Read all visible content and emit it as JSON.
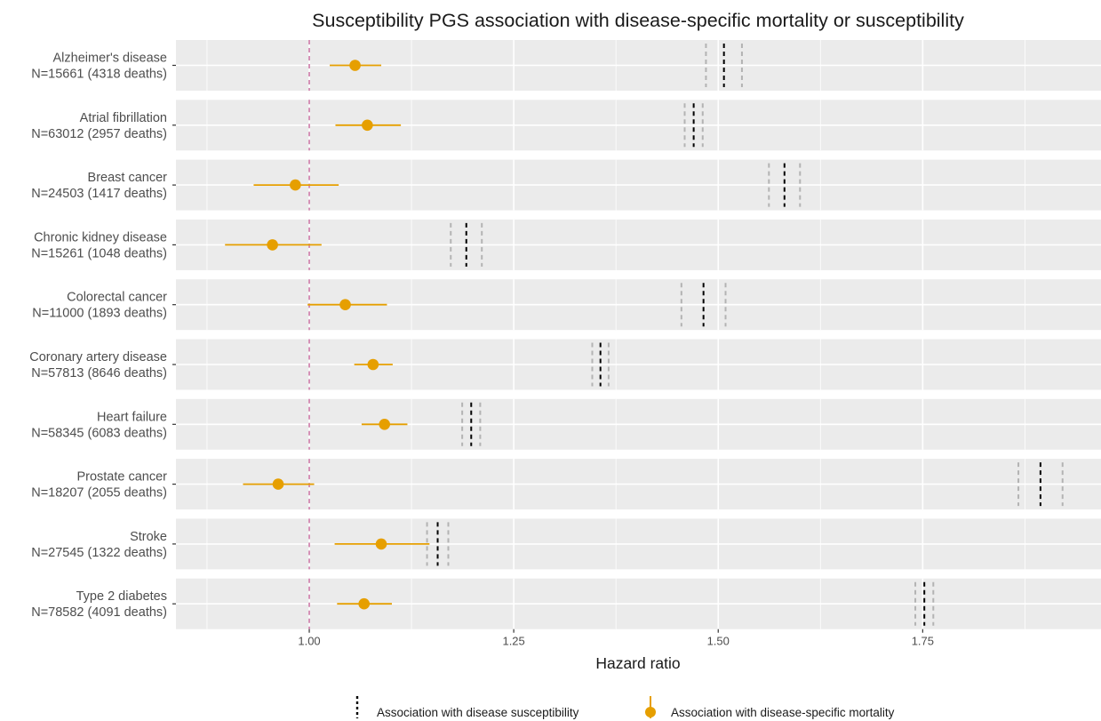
{
  "chart_data": {
    "type": "forest",
    "title": "Susceptibility PGS association with disease-specific mortality or susceptibility",
    "xlabel": "Hazard ratio",
    "ylabel": "",
    "xlim": [
      0.837,
      1.968
    ],
    "xticks": [
      "1.00",
      "1.25",
      "1.50",
      "1.75"
    ],
    "xtick_values": [
      1.0,
      1.25,
      1.5,
      1.75
    ],
    "reference_line": 1.0,
    "grid": true,
    "legend_position": "bottom",
    "legend": [
      {
        "label": "Association with disease susceptibility",
        "marker": "dashed-line",
        "color": "#000000"
      },
      {
        "label": "Association with disease-specific mortality",
        "marker": "point-range",
        "color": "#E69F00"
      }
    ],
    "colors": {
      "mortality": "#E69F00",
      "susceptibility": "#000000",
      "susceptibility_ci": "#b3b3b3",
      "reference": "#CC79A7",
      "panel": "#ebebeb",
      "grid": "#ffffff"
    },
    "rows": [
      {
        "label": "Alzheimer's disease",
        "n_label": "N=15661 (4318 deaths)",
        "mortality_hr": 1.056,
        "mortality_lo": 1.025,
        "mortality_hi": 1.088,
        "suscept_hr": 1.507,
        "suscept_lo": 1.485,
        "suscept_hi": 1.529
      },
      {
        "label": "Atrial fibrillation",
        "n_label": "N=63012 (2957 deaths)",
        "mortality_hr": 1.071,
        "mortality_lo": 1.032,
        "mortality_hi": 1.112,
        "suscept_hr": 1.47,
        "suscept_lo": 1.459,
        "suscept_hi": 1.481
      },
      {
        "label": "Breast cancer",
        "n_label": "N=24503 (1417 deaths)",
        "mortality_hr": 0.983,
        "mortality_lo": 0.932,
        "mortality_hi": 1.036,
        "suscept_hr": 1.581,
        "suscept_lo": 1.562,
        "suscept_hi": 1.6
      },
      {
        "label": "Chronic kidney disease",
        "n_label": "N=15261 (1048 deaths)",
        "mortality_hr": 0.955,
        "mortality_lo": 0.897,
        "mortality_hi": 1.015,
        "suscept_hr": 1.192,
        "suscept_lo": 1.173,
        "suscept_hi": 1.211
      },
      {
        "label": "Colorectal cancer",
        "n_label": "N=11000 (1893 deaths)",
        "mortality_hr": 1.044,
        "mortality_lo": 0.998,
        "mortality_hi": 1.095,
        "suscept_hr": 1.482,
        "suscept_lo": 1.455,
        "suscept_hi": 1.509
      },
      {
        "label": "Coronary artery disease",
        "n_label": "N=57813 (8646 deaths)",
        "mortality_hr": 1.078,
        "mortality_lo": 1.055,
        "mortality_hi": 1.102,
        "suscept_hr": 1.356,
        "suscept_lo": 1.346,
        "suscept_hi": 1.366
      },
      {
        "label": "Heart failure",
        "n_label": "N=58345 (6083 deaths)",
        "mortality_hr": 1.092,
        "mortality_lo": 1.064,
        "mortality_hi": 1.12,
        "suscept_hr": 1.198,
        "suscept_lo": 1.187,
        "suscept_hi": 1.209
      },
      {
        "label": "Prostate cancer",
        "n_label": "N=18207 (2055 deaths)",
        "mortality_hr": 0.962,
        "mortality_lo": 0.919,
        "mortality_hi": 1.006,
        "suscept_hr": 1.894,
        "suscept_lo": 1.867,
        "suscept_hi": 1.921
      },
      {
        "label": "Stroke",
        "n_label": "N=27545 (1322 deaths)",
        "mortality_hr": 1.088,
        "mortality_lo": 1.031,
        "mortality_hi": 1.147,
        "suscept_hr": 1.157,
        "suscept_lo": 1.144,
        "suscept_hi": 1.17
      },
      {
        "label": "Type 2 diabetes",
        "n_label": "N=78582 (4091 deaths)",
        "mortality_hr": 1.067,
        "mortality_lo": 1.034,
        "mortality_hi": 1.101,
        "suscept_hr": 1.752,
        "suscept_lo": 1.741,
        "suscept_hi": 1.763
      }
    ]
  }
}
